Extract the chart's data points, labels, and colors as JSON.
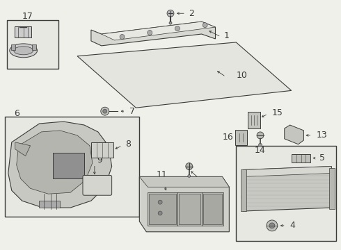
{
  "bg": "#f0f0eb",
  "lc": "#3a3a3a",
  "lc_light": "#888888",
  "box_bg": "#e8e8e3",
  "fig_w": 4.9,
  "fig_h": 3.6,
  "dpi": 100,
  "label_fs": 8,
  "small_fs": 7
}
